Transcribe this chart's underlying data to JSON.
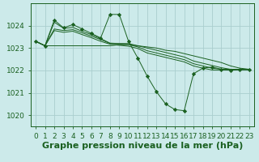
{
  "bg_color": "#cceaea",
  "grid_color": "#aacece",
  "line_color": "#1a6020",
  "marker_color": "#1a6020",
  "title": "Graphe pression niveau de la mer (hPa)",
  "xlim": [
    -0.5,
    23.5
  ],
  "ylim": [
    1019.5,
    1025.0
  ],
  "yticks": [
    1020,
    1021,
    1022,
    1023,
    1024
  ],
  "xticks": [
    0,
    1,
    2,
    3,
    4,
    5,
    6,
    7,
    8,
    9,
    10,
    11,
    12,
    13,
    14,
    15,
    16,
    17,
    18,
    19,
    20,
    21,
    22,
    23
  ],
  "series1": [
    1023.3,
    1023.1,
    1023.1,
    1023.1,
    1023.1,
    1023.1,
    1023.1,
    1023.1,
    1023.1,
    1023.15,
    1023.15,
    1023.1,
    1023.05,
    1023.0,
    1022.9,
    1022.85,
    1022.75,
    1022.65,
    1022.55,
    1022.45,
    1022.35,
    1022.2,
    1022.1,
    1022.05
  ],
  "series2": [
    1023.3,
    1023.1,
    1024.25,
    1023.9,
    1024.05,
    1023.85,
    1023.65,
    1023.45,
    1024.5,
    1024.5,
    1023.3,
    1022.55,
    1021.75,
    1021.05,
    1020.5,
    1020.25,
    1020.2,
    1021.85,
    1022.1,
    1022.15,
    1022.05,
    1022.0,
    1022.05,
    1022.05
  ],
  "series3": [
    1023.3,
    1023.1,
    1024.15,
    1023.88,
    1023.92,
    1023.75,
    1023.6,
    1023.42,
    1023.22,
    1023.2,
    1023.2,
    1023.1,
    1023.0,
    1022.9,
    1022.8,
    1022.7,
    1022.6,
    1022.42,
    1022.32,
    1022.22,
    1022.12,
    1022.05,
    1022.05,
    1022.05
  ],
  "series4": [
    1023.3,
    1023.1,
    1023.85,
    1023.78,
    1023.82,
    1023.68,
    1023.53,
    1023.38,
    1023.2,
    1023.18,
    1023.15,
    1023.05,
    1022.88,
    1022.78,
    1022.68,
    1022.58,
    1022.48,
    1022.3,
    1022.2,
    1022.1,
    1022.05,
    1022.05,
    1022.05,
    1022.05
  ],
  "series5": [
    1023.3,
    1023.1,
    1023.78,
    1023.7,
    1023.75,
    1023.6,
    1023.46,
    1023.3,
    1023.17,
    1023.12,
    1023.08,
    1022.98,
    1022.78,
    1022.68,
    1022.58,
    1022.48,
    1022.38,
    1022.2,
    1022.1,
    1022.02,
    1022.02,
    1022.02,
    1022.02,
    1022.02
  ],
  "title_fontsize": 8,
  "tick_fontsize": 6.5
}
